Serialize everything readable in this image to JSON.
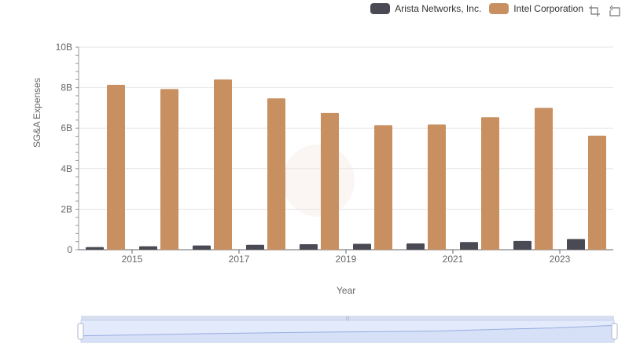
{
  "legend": {
    "items": [
      {
        "label": "Arista Networks, Inc.",
        "color": "#4a4a55"
      },
      {
        "label": "Intel Corporation",
        "color": "#c89060"
      }
    ]
  },
  "toolbox": {
    "icons": [
      "zoom-icon",
      "zoom-reset-icon"
    ]
  },
  "chart_data": {
    "type": "bar",
    "x": [
      2014,
      2015,
      2016,
      2017,
      2018,
      2019,
      2020,
      2021,
      2022,
      2023
    ],
    "x_tick_labels": [
      "2015",
      "2017",
      "2019",
      "2021",
      "2023"
    ],
    "series": [
      {
        "name": "Arista Networks, Inc.",
        "color": "#4a4a55",
        "values": [
          0.13,
          0.17,
          0.21,
          0.24,
          0.27,
          0.29,
          0.31,
          0.38,
          0.43,
          0.53
        ]
      },
      {
        "name": "Intel Corporation",
        "color": "#c89060",
        "values": [
          8.14,
          7.93,
          8.4,
          7.47,
          6.75,
          6.15,
          6.18,
          6.54,
          7.0,
          5.63
        ]
      }
    ],
    "ylim": [
      0,
      10
    ],
    "y_ticks": [
      0,
      2,
      4,
      6,
      8,
      10
    ],
    "y_tick_labels": [
      "0",
      "2B",
      "4B",
      "6B",
      "8B",
      "10B"
    ],
    "xlabel": "Year",
    "ylabel": "SG&A Expenses",
    "grid": true
  }
}
